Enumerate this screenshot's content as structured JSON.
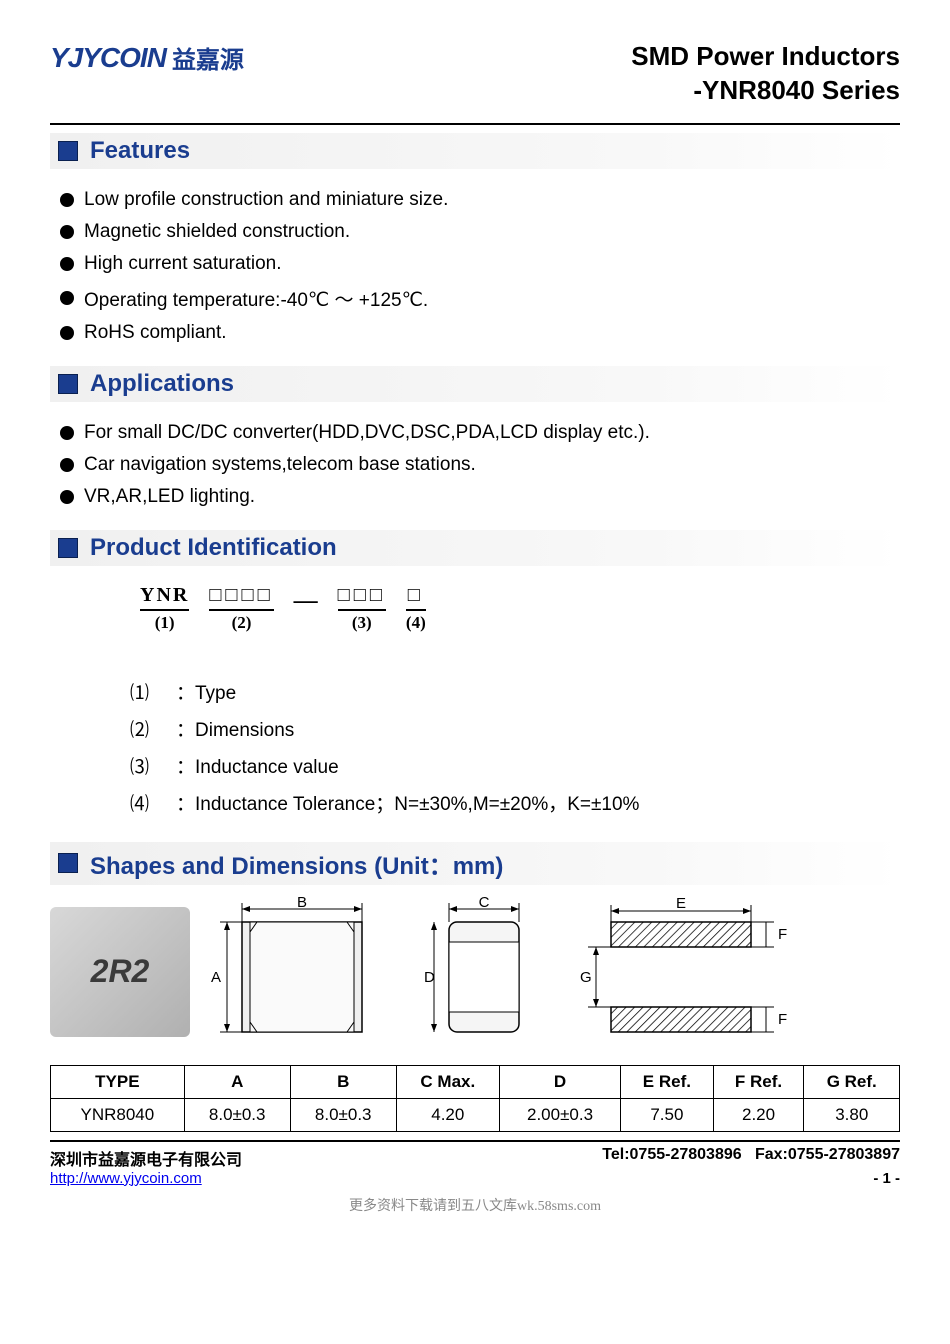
{
  "logo": {
    "en": "YJYCOIN",
    "cn": "益嘉源"
  },
  "title": {
    "line1": "SMD Power Inductors",
    "line2": "-YNR8040 Series"
  },
  "sections": {
    "features": {
      "heading": "Features",
      "items": [
        "Low profile construction and miniature size.",
        "Magnetic shielded construction.",
        "High current saturation.",
        "Operating temperature:-40℃ ～ +125℃.",
        "RoHS compliant."
      ]
    },
    "applications": {
      "heading": "Applications",
      "items": [
        "For small DC/DC converter(HDD,DVC,DSC,PDA,LCD display etc.).",
        "Car navigation systems,telecom base stations.",
        "VR,AR,LED lighting."
      ]
    },
    "product_id": {
      "heading": "Product Identification",
      "parts": [
        {
          "top": "YNR",
          "bot": "(1)"
        },
        {
          "top": "□□□□",
          "bot": "(2)"
        },
        {
          "top": "□□□",
          "bot": "(3)"
        },
        {
          "top": "□",
          "bot": "(4)"
        }
      ],
      "legend": [
        {
          "num": "⑴",
          "text": "：Type"
        },
        {
          "num": "⑵",
          "text": "：Dimensions"
        },
        {
          "num": "⑶",
          "text": "：Inductance value"
        },
        {
          "num": "⑷",
          "text": "：Inductance Tolerance；N=±30%,M=±20%，K=±10%"
        }
      ]
    },
    "shapes": {
      "heading": "Shapes and Dimensions (Unit：mm)",
      "photo_label": "2R2",
      "dim_labels": {
        "A": "A",
        "B": "B",
        "C": "C",
        "D": "D",
        "E": "E",
        "F": "F",
        "G": "G"
      }
    }
  },
  "dim_table": {
    "headers": [
      "TYPE",
      "A",
      "B",
      "C Max.",
      "D",
      "E Ref.",
      "F Ref.",
      "G Ref."
    ],
    "row": [
      "YNR8040",
      "8.0±0.3",
      "8.0±0.3",
      "4.20",
      "2.00±0.3",
      "7.50",
      "2.20",
      "3.80"
    ]
  },
  "footer": {
    "company": "深圳市益嘉源电子有限公司",
    "tel": "Tel:0755-27803896",
    "fax": "Fax:0755-27803897",
    "url": "http://www.yjycoin.com",
    "page": "- 1 -"
  },
  "watermark": "更多资料下载请到五八文库wk.58sms.com",
  "colors": {
    "brand": "#1a3d8f",
    "text": "#000000",
    "section_bg": "#f0f0f0"
  }
}
